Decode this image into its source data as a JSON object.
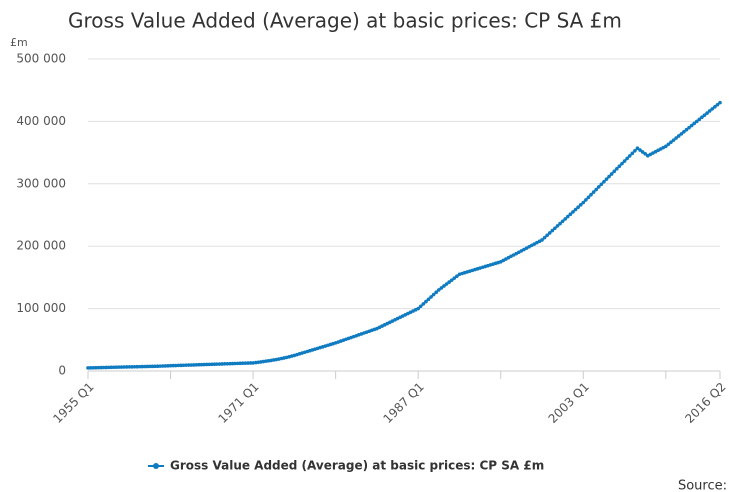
{
  "chart_data": {
    "type": "line",
    "title": "Gross Value Added (Average) at basic prices: CP SA £m",
    "y_label": "£m",
    "source": "Source:",
    "categories": [
      "1955 Q1",
      null,
      null,
      null,
      null,
      null,
      null,
      null,
      null,
      null,
      null,
      null,
      null,
      null,
      null,
      null,
      null,
      null,
      null,
      null,
      null,
      null,
      null,
      null,
      null,
      null,
      null,
      null,
      null,
      null,
      null,
      null,
      null,
      null,
      null,
      null,
      null,
      null,
      null,
      null,
      null,
      null,
      null,
      null,
      null,
      null,
      null,
      null,
      null,
      null,
      null,
      null,
      null,
      null,
      null,
      null,
      null,
      null,
      null,
      null,
      null,
      null,
      null,
      null,
      "1971 Q1",
      null,
      null,
      null,
      null,
      null,
      null,
      null,
      null,
      null,
      null,
      null,
      null,
      null,
      null,
      null,
      null,
      null,
      null,
      null,
      null,
      null,
      null,
      null,
      null,
      null,
      null,
      null,
      null,
      null,
      null,
      null,
      null,
      null,
      null,
      null,
      null,
      null,
      null,
      null,
      null,
      null,
      null,
      null,
      null,
      null,
      null,
      null,
      null,
      null,
      null,
      null,
      null,
      null,
      null,
      null,
      null,
      null,
      null,
      null,
      null,
      null,
      null,
      null,
      "1987 Q1",
      null,
      null,
      null,
      null,
      null,
      null,
      null,
      null,
      null,
      null,
      null,
      null,
      null,
      null,
      null,
      null,
      null,
      null,
      null,
      null,
      null,
      null,
      null,
      null,
      null,
      null,
      null,
      null,
      null,
      null,
      null,
      null,
      null,
      null,
      null,
      null,
      null,
      null,
      null,
      null,
      null,
      null,
      null,
      null,
      null,
      null,
      null,
      null,
      null,
      null,
      null,
      null,
      null,
      null,
      null,
      null,
      null,
      null,
      null,
      null,
      null,
      null,
      null,
      "2003 Q1",
      null,
      null,
      null,
      null,
      null,
      null,
      null,
      null,
      null,
      null,
      null,
      null,
      null,
      null,
      null,
      null,
      null,
      null,
      null,
      null,
      null,
      null,
      null,
      null,
      null,
      null,
      null,
      null,
      null,
      null,
      null,
      null,
      null,
      null,
      null,
      null,
      null,
      null,
      null,
      null,
      null,
      null,
      null,
      null,
      null,
      null,
      null,
      null,
      null,
      null,
      null,
      null,
      "2016 Q2"
    ],
    "series": [
      {
        "name": "Gross Value Added (Average) at basic prices: CP SA £m",
        "color": "#0f7bc1",
        "values": [
          5000,
          5100,
          5200,
          5300,
          5400,
          5500,
          5600,
          5700,
          5800,
          5900,
          6000,
          6100,
          6200,
          6300,
          6400,
          6500,
          6600,
          6700,
          6800,
          6900,
          7000,
          7100,
          7200,
          7300,
          7400,
          7500,
          7600,
          7700,
          7800,
          7950,
          8100,
          8300,
          8500,
          8640,
          8780,
          8920,
          9060,
          9200,
          9340,
          9480,
          9620,
          9760,
          9900,
          10040,
          10180,
          10320,
          10460,
          10600,
          10740,
          10880,
          11020,
          11160,
          11300,
          11440,
          11580,
          11720,
          11860,
          12000,
          12150,
          12300,
          12450,
          12600,
          12750,
          12900,
          13000,
          13500,
          14000,
          14600,
          15200,
          15800,
          16400,
          17000,
          17700,
          18400,
          19200,
          20000,
          20900,
          21800,
          22800,
          23900,
          25000,
          26250,
          27500,
          28750,
          30000,
          31250,
          32500,
          33750,
          35000,
          36250,
          37500,
          38750,
          40000,
          41250,
          42500,
          43750,
          45000,
          46400,
          47900,
          49300,
          50800,
          52200,
          53600,
          55100,
          56500,
          58000,
          59400,
          60900,
          62300,
          63700,
          65200,
          66600,
          68000,
          70000,
          72000,
          74000,
          76000,
          78000,
          80000,
          82000,
          84000,
          86000,
          88000,
          90000,
          92000,
          94000,
          96000,
          98000,
          100000,
          103750,
          107500,
          111250,
          115000,
          118750,
          122500,
          126250,
          130000,
          133100,
          136300,
          139400,
          142500,
          145600,
          148800,
          151900,
          155000,
          156250,
          157500,
          158750,
          160000,
          161250,
          162500,
          163750,
          165000,
          166250,
          167500,
          168750,
          170000,
          171250,
          172500,
          173750,
          175000,
          177200,
          179400,
          181600,
          183800,
          185900,
          188100,
          190300,
          192500,
          194700,
          196900,
          199100,
          201300,
          203400,
          205600,
          207800,
          210000,
          213750,
          217500,
          221250,
          225000,
          228750,
          232500,
          236250,
          240000,
          243750,
          247500,
          251250,
          255000,
          258750,
          262500,
          266250,
          270000,
          274200,
          278300,
          282500,
          286700,
          290800,
          295000,
          299200,
          303300,
          307500,
          311700,
          315800,
          320000,
          324100,
          328200,
          332300,
          336400,
          340600,
          344700,
          348800,
          352900,
          357000,
          354000,
          351000,
          348000,
          345000,
          347100,
          349300,
          351400,
          353600,
          355700,
          357900,
          360000,
          363300,
          366700,
          370000,
          373300,
          376700,
          380000,
          383300,
          386700,
          390000,
          393300,
          396700,
          400000,
          403300,
          406700,
          410000,
          413300,
          416700,
          420000,
          423300,
          426700,
          430000
        ]
      }
    ],
    "ylim": [
      0,
      500000
    ],
    "yticks": [
      0,
      {
        "value": 100000,
        "label": "100 000"
      },
      {
        "value": 200000,
        "label": "200 000"
      },
      {
        "value": 300000,
        "label": "300 000"
      },
      {
        "value": 400000,
        "label": "400 000"
      },
      {
        "value": 500000,
        "label": "500 000"
      }
    ],
    "grid": true
  }
}
